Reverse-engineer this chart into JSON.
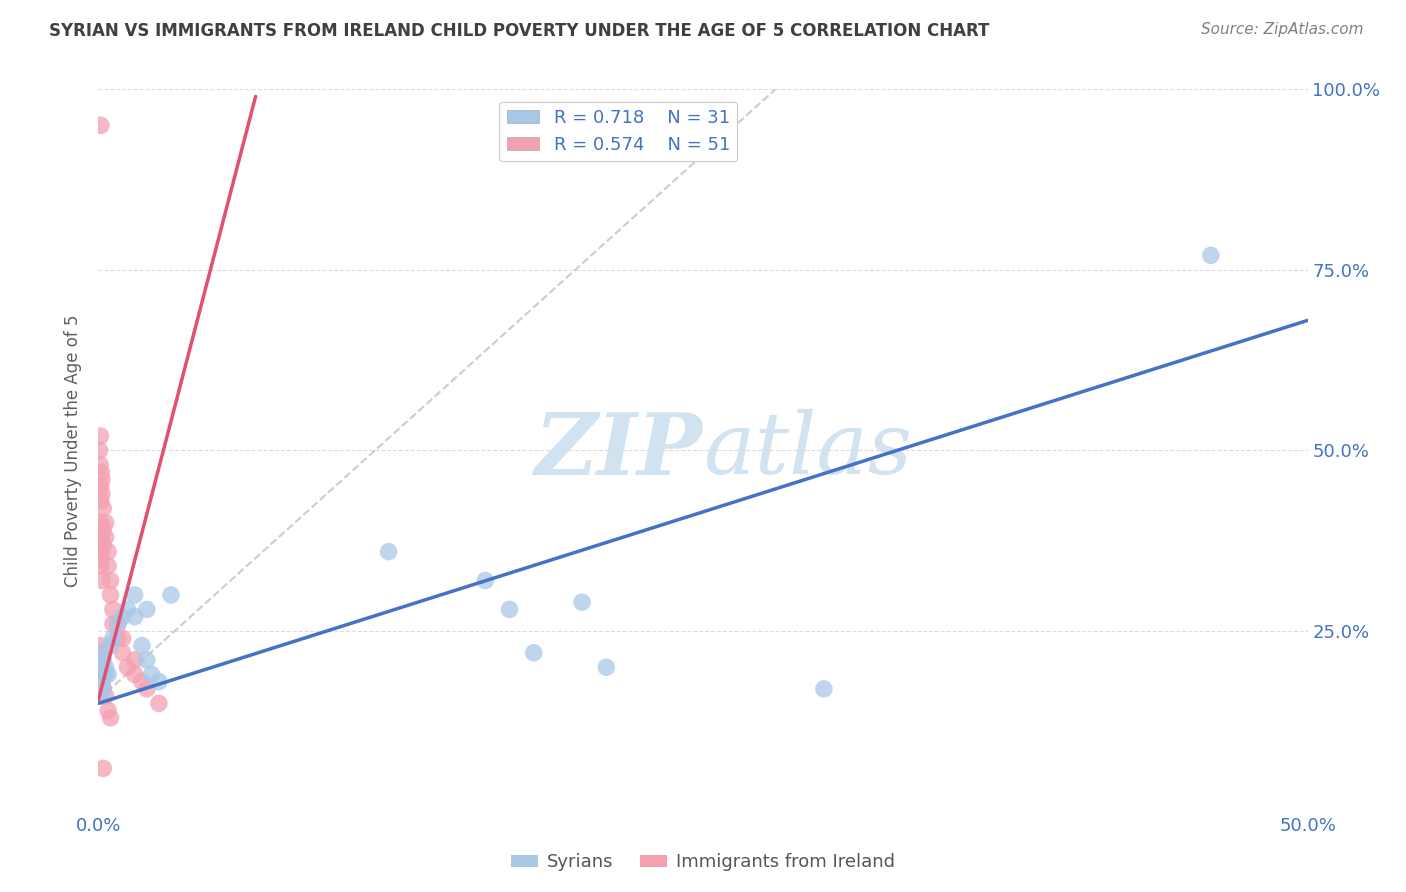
{
  "title": "SYRIAN VS IMMIGRANTS FROM IRELAND CHILD POVERTY UNDER THE AGE OF 5 CORRELATION CHART",
  "source": "Source: ZipAtlas.com",
  "ylabel": "Child Poverty Under the Age of 5",
  "xlim": [
    0.0,
    0.5
  ],
  "ylim": [
    0.0,
    1.0
  ],
  "xtick_vals": [
    0.0,
    0.1,
    0.2,
    0.3,
    0.4,
    0.5
  ],
  "xtick_labels": [
    "0.0%",
    "",
    "",
    "",
    "",
    "50.0%"
  ],
  "ytick_vals": [
    0.25,
    0.5,
    0.75,
    1.0
  ],
  "ytick_labels": [
    "25.0%",
    "50.0%",
    "75.0%",
    "100.0%"
  ],
  "blue_color": "#a8c8e8",
  "pink_color": "#f4a0b0",
  "blue_line_color": "#4472c4",
  "pink_line_color": "#e05070",
  "dash_line_color": "#c0c0c0",
  "legend_R_blue": "0.718",
  "legend_N_blue": "31",
  "legend_R_pink": "0.574",
  "legend_N_pink": "51",
  "legend_label_blue": "Syrians",
  "legend_label_pink": "Immigrants from Ireland",
  "watermark_text": "ZIPatlas",
  "background_color": "#ffffff",
  "grid_color": "#dddddd",
  "tick_label_color": "#4472c4",
  "title_color": "#404040",
  "ylabel_color": "#606060",
  "source_color": "#808080",
  "blue_line_x": [
    0.0,
    0.5
  ],
  "blue_line_y": [
    0.15,
    0.68
  ],
  "pink_line_x": [
    0.0,
    0.065
  ],
  "pink_line_y": [
    0.155,
    0.99
  ],
  "dash_line_x": [
    0.0,
    0.28
  ],
  "dash_line_y": [
    0.155,
    1.0
  ],
  "syrians_x": [
    0.001,
    0.001,
    0.002,
    0.002,
    0.003,
    0.003,
    0.004,
    0.001,
    0.002,
    0.001,
    0.005,
    0.006,
    0.008,
    0.01,
    0.012,
    0.015,
    0.018,
    0.02,
    0.022,
    0.025,
    0.015,
    0.02,
    0.03,
    0.12,
    0.16,
    0.2,
    0.17,
    0.18,
    0.21,
    0.3,
    0.46
  ],
  "syrians_y": [
    0.18,
    0.2,
    0.19,
    0.21,
    0.2,
    0.19,
    0.19,
    0.22,
    0.17,
    0.16,
    0.23,
    0.24,
    0.26,
    0.27,
    0.28,
    0.27,
    0.23,
    0.21,
    0.19,
    0.18,
    0.3,
    0.28,
    0.3,
    0.36,
    0.32,
    0.29,
    0.28,
    0.22,
    0.2,
    0.17,
    0.77
  ],
  "ireland_x": [
    0.0005,
    0.0008,
    0.001,
    0.001,
    0.0012,
    0.0015,
    0.0008,
    0.001,
    0.0015,
    0.002,
    0.001,
    0.001,
    0.0008,
    0.0012,
    0.0005,
    0.0008,
    0.001,
    0.001,
    0.0015,
    0.001,
    0.002,
    0.002,
    0.003,
    0.003,
    0.004,
    0.004,
    0.005,
    0.005,
    0.006,
    0.006,
    0.008,
    0.008,
    0.01,
    0.01,
    0.012,
    0.015,
    0.015,
    0.018,
    0.02,
    0.025,
    0.001,
    0.001,
    0.0008,
    0.001,
    0.0012,
    0.0015,
    0.002,
    0.003,
    0.004,
    0.005,
    0.002
  ],
  "ireland_y": [
    0.17,
    0.18,
    0.19,
    0.45,
    0.47,
    0.46,
    0.48,
    0.43,
    0.44,
    0.42,
    0.35,
    0.37,
    0.4,
    0.38,
    0.5,
    0.52,
    0.36,
    0.34,
    0.32,
    0.95,
    0.39,
    0.37,
    0.4,
    0.38,
    0.36,
    0.34,
    0.32,
    0.3,
    0.28,
    0.26,
    0.26,
    0.24,
    0.22,
    0.24,
    0.2,
    0.21,
    0.19,
    0.18,
    0.17,
    0.15,
    0.22,
    0.21,
    0.23,
    0.19,
    0.2,
    0.18,
    0.17,
    0.16,
    0.14,
    0.13,
    0.06
  ]
}
